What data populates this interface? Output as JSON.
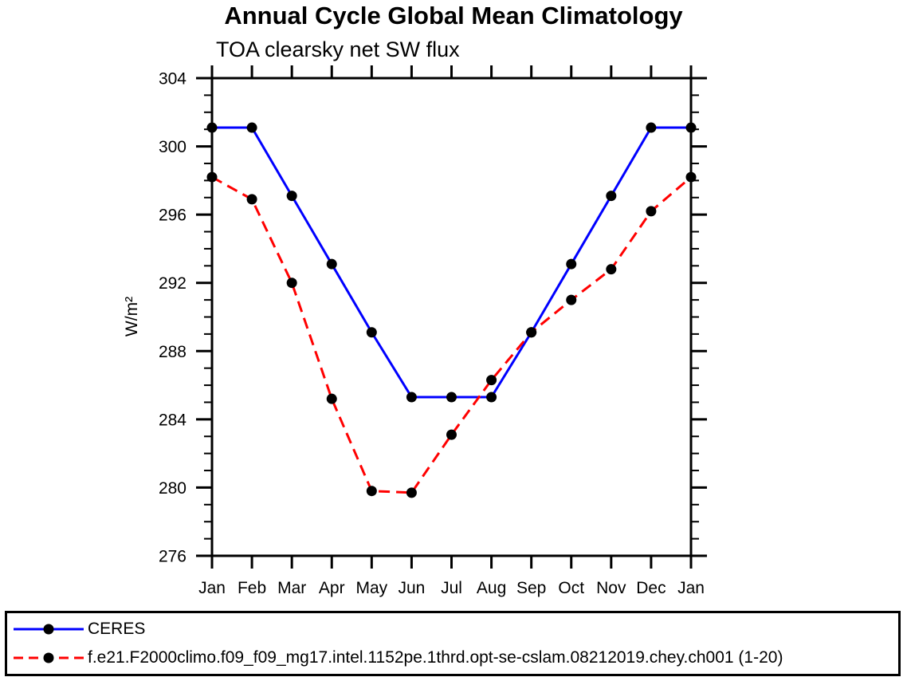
{
  "title": "Annual Cycle Global Mean Climatology",
  "subtitle": "TOA clearsky net SW flux",
  "ylabel": "W/m²",
  "chart_data": {
    "type": "line",
    "x_categories": [
      "Jan",
      "Feb",
      "Mar",
      "Apr",
      "May",
      "Jun",
      "Jul",
      "Aug",
      "Sep",
      "Oct",
      "Nov",
      "Dec",
      "Jan"
    ],
    "series": [
      {
        "name": "CERES",
        "color": "#0000ff",
        "line_style": "solid",
        "marker": "filled-circle",
        "marker_color": "#000000",
        "values": [
          301.1,
          301.1,
          297.1,
          293.1,
          289.1,
          285.3,
          285.3,
          285.3,
          289.1,
          293.1,
          297.1,
          301.1,
          301.1
        ]
      },
      {
        "name": "f.e21.F2000climo.f09_f09_mg17.intel.1152pe.1thrd.opt-se-cslam.08212019.chey.ch001 (1-20)",
        "color": "#ff0000",
        "line_style": "dashed",
        "marker": "filled-circle",
        "marker_color": "#000000",
        "values": [
          298.2,
          296.9,
          292.0,
          285.2,
          279.8,
          279.7,
          283.1,
          286.3,
          289.1,
          291.0,
          292.8,
          296.2,
          298.2
        ]
      }
    ],
    "ylim": [
      276,
      304
    ],
    "ytick_major_values": [
      276,
      280,
      284,
      288,
      292,
      296,
      300,
      304
    ],
    "ytick_minor_step": 1,
    "xlabel": "",
    "ylabel": "W/m²",
    "grid": false,
    "legend_position": "bottom-box",
    "axis_color": "#000000"
  }
}
